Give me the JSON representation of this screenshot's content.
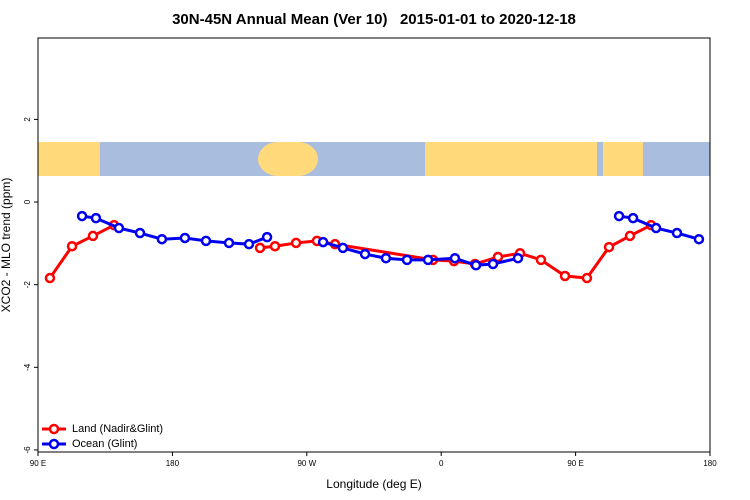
{
  "chart_data": {
    "type": "line",
    "title": "30N-45N Annual Mean (Ver 10)   2015-01-01 to 2020-12-18",
    "x_label": "Longitude (deg E)",
    "y_label": "XCO2 - MLO trend (ppm)",
    "xlim": [
      90,
      540
    ],
    "ylim": [
      -6.05,
      3.97
    ],
    "xticks": [
      {
        "value": 90,
        "label": "90 E"
      },
      {
        "value": 180,
        "label": "180"
      },
      {
        "value": 270,
        "label": "90 W"
      },
      {
        "value": 360,
        "label": "0"
      },
      {
        "value": 450,
        "label": "90 E"
      },
      {
        "value": 540,
        "label": "180"
      }
    ],
    "yticks": [
      2,
      0,
      -2,
      -4,
      -6
    ],
    "legend": "bottom-left",
    "series": [
      {
        "name": "Land (Nadir&Glint)",
        "color": "#ff0000",
        "x": [
          98,
          112.8,
          126.8,
          140.9,
          null,
          238.7,
          248.7,
          262.8,
          276.8,
          288.9,
          354.5,
          368.6,
          382.6,
          398.0,
          412.8,
          426.8,
          442.9,
          457.6,
          472.4,
          486.4,
          500.5
        ],
        "values": [
          -1.84,
          -1.07,
          -0.82,
          -0.56,
          null,
          -1.11,
          -1.07,
          -0.99,
          -0.94,
          -1.02,
          -1.4,
          -1.43,
          -1.5,
          -1.33,
          -1.24,
          -1.4,
          -1.79,
          -1.84,
          -1.09,
          -0.82,
          -0.56
        ]
      },
      {
        "name": "Ocean (Glint)",
        "color": "#0000ee",
        "x": [
          119.5,
          128.8,
          144.2,
          158.3,
          173.0,
          188.4,
          202.5,
          217.9,
          231.3,
          243.4,
          null,
          280.9,
          294.2,
          309.0,
          323.0,
          337.1,
          351.2,
          369.2,
          383.3,
          394.7,
          411.4,
          null,
          479.1,
          488.5,
          503.9,
          517.9,
          532.6
        ],
        "values": [
          -0.34,
          -0.39,
          -0.63,
          -0.75,
          -0.9,
          -0.87,
          -0.94,
          -0.99,
          -1.02,
          -0.85,
          null,
          -0.97,
          -1.11,
          -1.26,
          -1.36,
          -1.4,
          -1.4,
          -1.36,
          -1.53,
          -1.5,
          -1.36,
          null,
          -0.34,
          -0.39,
          -0.63,
          -0.75,
          -0.9
        ]
      }
    ]
  }
}
